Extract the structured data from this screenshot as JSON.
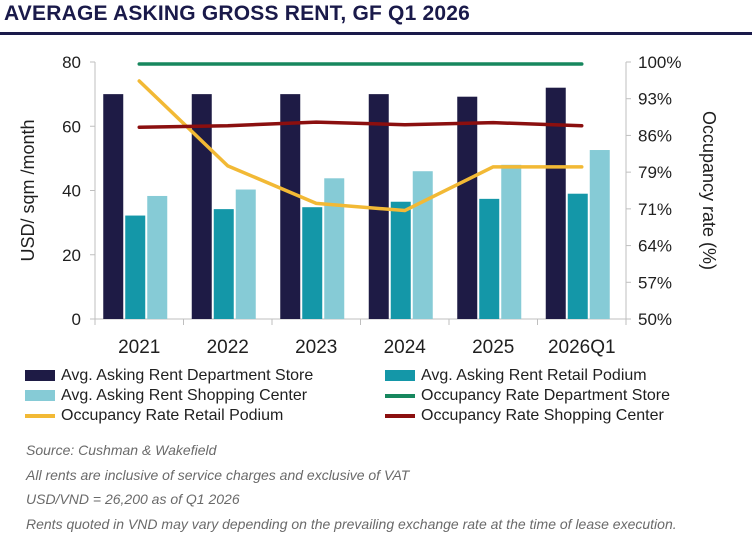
{
  "title": "AVERAGE ASKING GROSS RENT, GF Q1 2026",
  "chart_data": {
    "type": "bar",
    "categories": [
      "2021",
      "2022",
      "2023",
      "2024",
      "2025",
      "2026Q1"
    ],
    "ylabel": "USD/ sqm /month",
    "y2label": "Occupancy rate (%)",
    "ylim": [
      0,
      80
    ],
    "yticks": [
      "0",
      "20",
      "40",
      "60",
      "80"
    ],
    "y2lim": [
      50,
      100
    ],
    "y2ticks": [
      "50%",
      "57%",
      "64%",
      "71%",
      "79%",
      "86%",
      "93%",
      "100%"
    ],
    "bar_series": [
      {
        "name": "Avg. Asking Rent Department Store",
        "color": "#1e1b45",
        "values": [
          70,
          70,
          70,
          70,
          69.2,
          72
        ]
      },
      {
        "name": "Avg. Asking Rent Retail Podium",
        "color": "#1497a8",
        "values": [
          32.2,
          34.2,
          34.8,
          36.5,
          37.4,
          39
        ]
      },
      {
        "name": "Avg. Asking Rent Shopping Center",
        "color": "#86cbd6",
        "values": [
          38.3,
          40.3,
          43.8,
          46,
          48,
          52.6
        ]
      }
    ],
    "line_series": [
      {
        "name": "Occupancy Rate Department Store",
        "color": "#17875e",
        "values": [
          99.6,
          99.6,
          99.6,
          99.6,
          99.6,
          99.6
        ]
      },
      {
        "name": "Occupancy Rate Retail Podium",
        "color": "#f2b935",
        "values": [
          96.3,
          79.8,
          72.5,
          71.1,
          79.6,
          79.6
        ]
      },
      {
        "name": "Occupancy Rate Shopping Center",
        "color": "#8b0f0f",
        "values": [
          87.3,
          87.6,
          88.3,
          87.8,
          88.2,
          87.6
        ]
      }
    ],
    "grid": false,
    "legend_position": "bottom"
  },
  "legend": [
    {
      "label": "Avg. Asking Rent Department Store",
      "kind": "bar",
      "color": "#1e1b45"
    },
    {
      "label": "Avg. Asking Rent Retail Podium",
      "kind": "bar",
      "color": "#1497a8"
    },
    {
      "label": "Avg. Asking Rent Shopping Center",
      "kind": "bar",
      "color": "#86cbd6"
    },
    {
      "label": "Occupancy Rate Department Store",
      "kind": "line",
      "color": "#17875e"
    },
    {
      "label": "Occupancy Rate Retail Podium",
      "kind": "line",
      "color": "#f2b935"
    },
    {
      "label": "Occupancy Rate Shopping Center",
      "kind": "line",
      "color": "#8b0f0f"
    }
  ],
  "notes": [
    "Source: Cushman & Wakefield",
    "All rents are inclusive of service charges and exclusive of VAT",
    "USD/VND = 26,200 as of Q1 2026",
    "Rents quoted in VND may vary depending on the prevailing exchange rate at the time of lease execution."
  ]
}
